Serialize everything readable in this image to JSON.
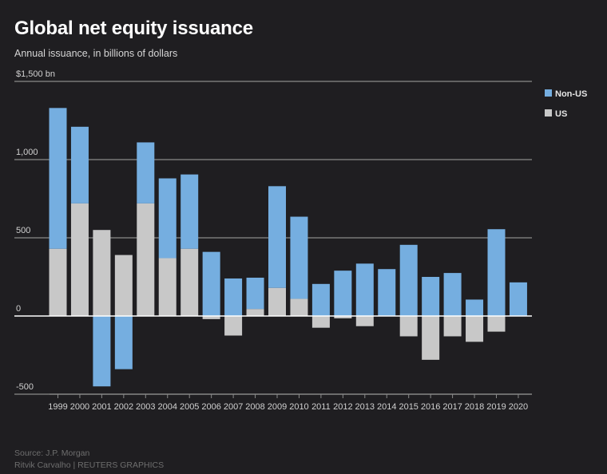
{
  "chart_data": {
    "type": "bar",
    "stacked": true,
    "title": "Global net equity issuance",
    "subtitle": "Annual issuance, in billions of dollars",
    "ylim": [
      -500,
      1500
    ],
    "yticks": [
      -500,
      0,
      500,
      1000,
      1500
    ],
    "ytick_labels": [
      "-500",
      "0",
      "500",
      "1,000",
      "$1,500 bn"
    ],
    "grid": true,
    "categories": [
      "1999",
      "2000",
      "2001",
      "2002",
      "2003",
      "2004",
      "2005",
      "2006",
      "2007",
      "2008",
      "2009",
      "2010",
      "2011",
      "2012",
      "2013",
      "2014",
      "2015",
      "2016",
      "2017",
      "2018",
      "2019",
      "2020"
    ],
    "series": [
      {
        "name": "US",
        "color": "#c8c8c8",
        "values": [
          430,
          720,
          550,
          390,
          720,
          370,
          430,
          -20,
          -125,
          45,
          180,
          110,
          -75,
          -15,
          -65,
          0,
          -130,
          -280,
          -130,
          -165,
          -100,
          0
        ]
      },
      {
        "name": "Non-US",
        "color": "#75aee0",
        "values": [
          900,
          490,
          -450,
          -340,
          390,
          510,
          475,
          410,
          240,
          200,
          650,
          525,
          205,
          290,
          335,
          300,
          455,
          250,
          275,
          105,
          555,
          215
        ]
      }
    ],
    "legend": [
      "Non-US",
      "US"
    ],
    "legend_position": "top-right"
  },
  "footer": {
    "source": "Source: J.P. Morgan",
    "credit": "Ritvik Carvalho   | REUTERS GRAPHICS"
  }
}
